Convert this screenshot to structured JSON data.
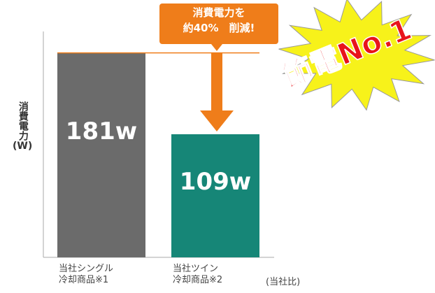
{
  "chart_data": {
    "type": "bar",
    "categories": [
      "当社シングル\n冷却商品※1",
      "当社ツイン\n冷却商品※2"
    ],
    "values": [
      181,
      109
    ],
    "value_labels": [
      "181w",
      "109w"
    ],
    "colors": [
      "#6b6b6b",
      "#168677"
    ],
    "ylim": [
      0,
      200
    ],
    "y_label": "消費電力\n(W)",
    "annotations": {
      "callout": "消費電力を\n約40%　削減!",
      "note": "(当社比)",
      "badge": "節電No.1"
    }
  }
}
